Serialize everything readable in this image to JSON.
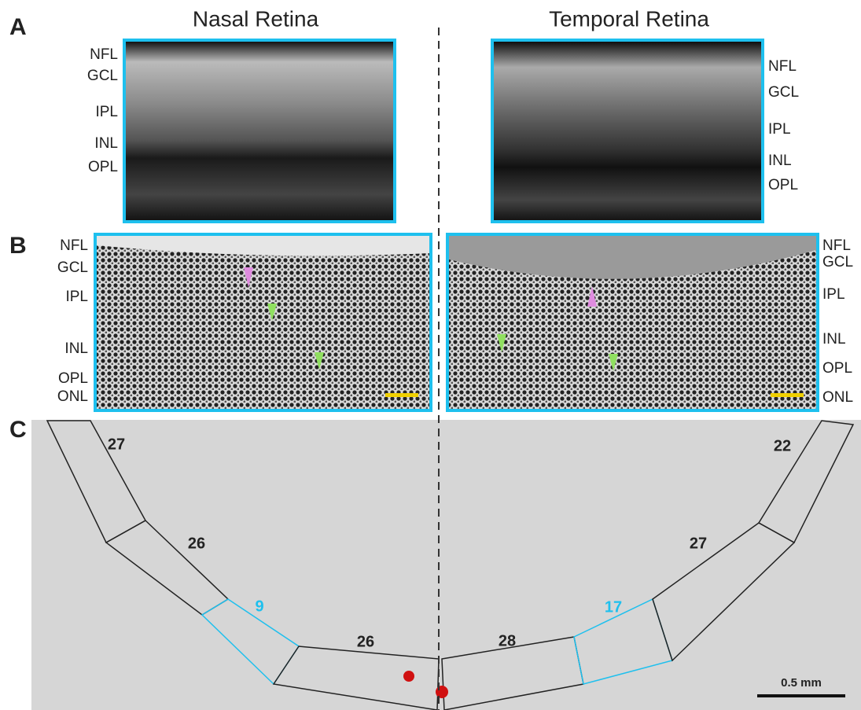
{
  "panel_a": {
    "letter": "A",
    "titles": [
      "Nasal Retina",
      "Temporal Retina"
    ],
    "left_layers": [
      "NFL",
      "GCL",
      "IPL",
      "INL",
      "OPL"
    ],
    "right_layers": [
      "NFL",
      "GCL",
      "IPL",
      "INL",
      "OPL"
    ]
  },
  "panel_b": {
    "letter": "B",
    "left_layers": [
      "NFL",
      "GCL",
      "IPL",
      "INL",
      "OPL",
      "ONL"
    ],
    "right_layers": [
      "NFL",
      "GCL",
      "IPL",
      "INL",
      "OPL",
      "ONL"
    ]
  },
  "panel_c": {
    "letter": "C",
    "left_counts": [
      27,
      26,
      9,
      26
    ],
    "right_counts": [
      28,
      17,
      27,
      22
    ],
    "scale_bar": "0.5 mm"
  }
}
